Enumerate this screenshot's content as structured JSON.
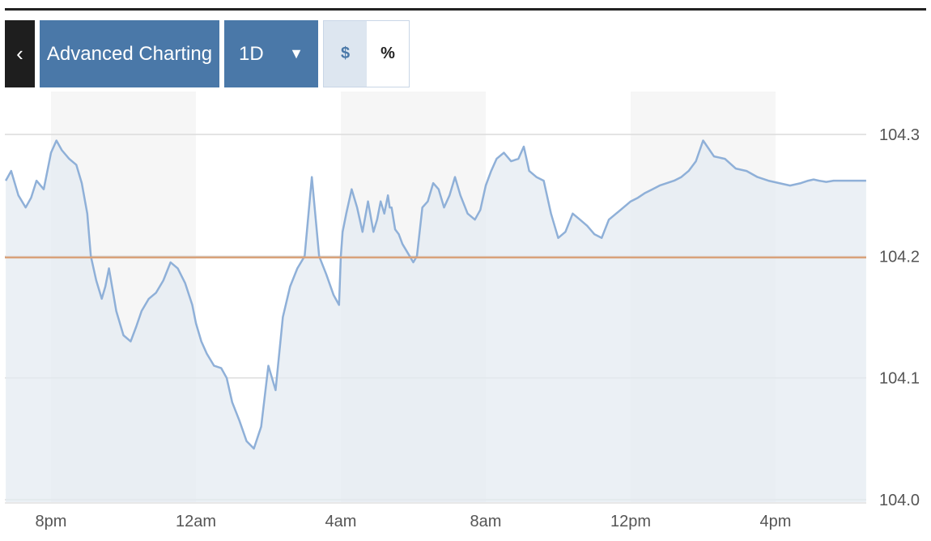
{
  "toolbar": {
    "back_icon": "chevron-left-icon",
    "back_glyph": "‹",
    "advanced_label": "Advanced Charting",
    "range_label": "1D",
    "range_caret": "▼",
    "dollar_label": "$",
    "percent_label": "%"
  },
  "colors": {
    "line": "#8fb0d8",
    "area": "#e4ebf2",
    "reference_line": "#d9a27a",
    "button": "#4a78a8",
    "back_button": "#1e1e1e"
  },
  "chart_data": {
    "type": "area",
    "ylim": [
      104.0,
      104.3
    ],
    "y_ticks": [
      "104.3",
      "104.2",
      "104.1",
      "104.0"
    ],
    "x_ticks": [
      "8pm",
      "12am",
      "4am",
      "8am",
      "12pm",
      "4pm"
    ],
    "xlim_hours": [
      -1.25,
      22.5
    ],
    "reference_value": 104.199,
    "series": [
      {
        "x": [
          -1.25,
          -1.1,
          -0.9,
          -0.7,
          -0.55,
          -0.4,
          -0.2,
          0,
          0.15,
          0.3,
          0.5,
          0.7,
          0.85,
          1,
          1.1,
          1.25,
          1.4,
          1.5,
          1.6,
          1.8,
          2.0,
          2.2,
          2.35,
          2.5,
          2.7,
          2.9,
          3.1,
          3.3,
          3.5,
          3.7,
          3.9,
          4,
          4.15,
          4.3,
          4.5,
          4.7,
          4.85,
          5,
          5.2,
          5.4,
          5.6,
          5.8,
          6,
          6.2,
          6.4,
          6.6,
          6.8,
          7.0,
          7.2,
          7.4,
          7.6,
          7.8,
          7.95,
          8.0,
          8.05,
          8.15,
          8.3,
          8.45,
          8.6,
          8.75,
          8.9,
          9.0,
          9.1,
          9.2,
          9.3,
          9.35,
          9.4,
          9.5,
          9.6,
          9.7,
          9.8,
          9.9,
          10.0,
          10.1,
          10.25,
          10.4,
          10.55,
          10.7,
          10.85,
          11.0,
          11.15,
          11.3,
          11.5,
          11.7,
          11.85,
          12.0,
          12.15,
          12.3,
          12.5,
          12.7,
          12.9,
          13.05,
          13.2,
          13.4,
          13.6,
          13.8,
          14.0,
          14.2,
          14.4,
          14.6,
          14.8,
          15.0,
          15.2,
          15.4,
          15.6,
          15.8,
          16.0,
          16.2,
          16.4,
          16.6,
          16.8,
          17.0,
          17.2,
          17.4,
          17.6,
          17.8,
          18.0,
          18.3,
          18.6,
          18.9,
          19.2,
          19.5,
          19.8,
          20.1,
          20.4,
          20.7,
          20.9,
          21.05,
          21.2,
          21.4,
          21.6,
          21.8,
          22.0,
          22.2,
          22.5
        ],
        "y": [
          104.262,
          104.27,
          104.25,
          104.24,
          104.248,
          104.262,
          104.255,
          104.285,
          104.295,
          104.287,
          104.28,
          104.275,
          104.26,
          104.235,
          104.2,
          104.18,
          104.165,
          104.175,
          104.19,
          104.155,
          104.135,
          104.13,
          104.142,
          104.155,
          104.165,
          104.17,
          104.18,
          104.195,
          104.19,
          104.178,
          104.16,
          104.145,
          104.13,
          104.12,
          104.11,
          104.108,
          104.1,
          104.08,
          104.065,
          104.048,
          104.042,
          104.06,
          104.11,
          104.09,
          104.15,
          104.175,
          104.19,
          104.2,
          104.265,
          104.2,
          104.185,
          104.168,
          104.16,
          104.2,
          104.22,
          104.235,
          104.255,
          104.24,
          104.22,
          104.245,
          104.22,
          104.23,
          104.245,
          104.235,
          104.25,
          104.24,
          104.24,
          104.222,
          104.218,
          104.21,
          104.205,
          104.2,
          104.195,
          104.2,
          104.24,
          104.245,
          104.26,
          104.255,
          104.24,
          104.25,
          104.265,
          104.25,
          104.235,
          104.23,
          104.238,
          104.258,
          104.27,
          104.28,
          104.285,
          104.278,
          104.28,
          104.29,
          104.27,
          104.265,
          104.262,
          104.235,
          104.215,
          104.22,
          104.235,
          104.23,
          104.225,
          104.218,
          104.215,
          104.23,
          104.235,
          104.24,
          104.245,
          104.248,
          104.252,
          104.255,
          104.258,
          104.26,
          104.262,
          104.265,
          104.27,
          104.278,
          104.295,
          104.282,
          104.28,
          104.272,
          104.27,
          104.265,
          104.262,
          104.26,
          104.258,
          104.26,
          104.262,
          104.263,
          104.262,
          104.261,
          104.262,
          104.262,
          104.262,
          104.262,
          104.262
        ]
      }
    ]
  }
}
